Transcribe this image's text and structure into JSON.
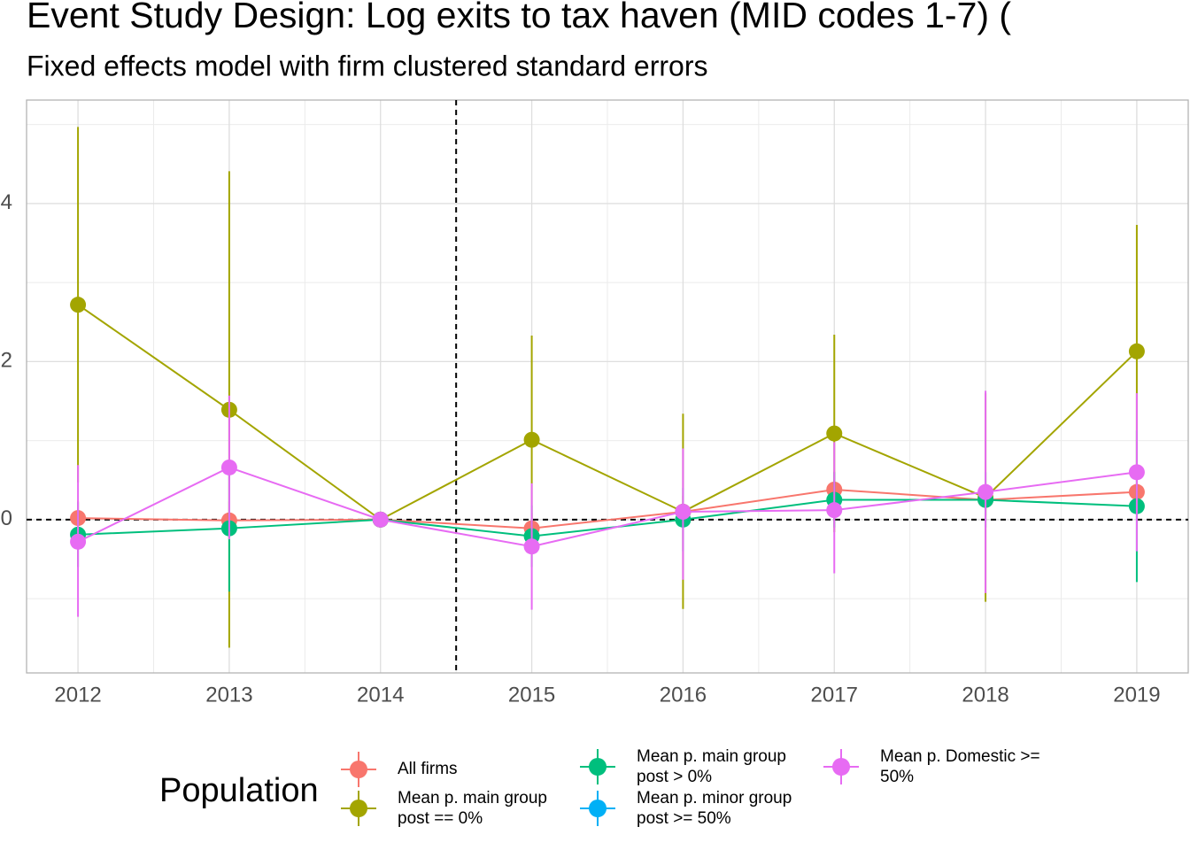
{
  "chart_data": {
    "type": "line",
    "title": "Event Study Design: Log exits to tax haven (MID codes 1-7)  (",
    "subtitle": "Fixed effects model with firm clustered standard errors",
    "x": [
      2012,
      2013,
      2014,
      2015,
      2016,
      2017,
      2018,
      2019
    ],
    "xlim": [
      2011.66,
      2019.34
    ],
    "xticks": [
      2012,
      2013,
      2014,
      2015,
      2016,
      2017,
      2018,
      2019
    ],
    "ylim": [
      -1.94,
      5.31
    ],
    "yticks": [
      0,
      2,
      4
    ],
    "grid": true,
    "vline": 2014.5,
    "hline": 0,
    "legend_title": "Population",
    "legend_position": "bottom",
    "series": [
      {
        "name": "All firms",
        "color": "#F8766D",
        "values": [
          0.02,
          -0.01,
          0,
          -0.11,
          0.1,
          0.38,
          0.25,
          0.35
        ],
        "lower": [
          -0.2,
          -0.25,
          0,
          -0.3,
          -0.1,
          0.15,
          0.05,
          0.1
        ],
        "upper": [
          0.24,
          0.23,
          0,
          0.08,
          0.3,
          0.61,
          0.45,
          0.6
        ]
      },
      {
        "name": "Mean p. main group post == 0%",
        "color": "#A3A500",
        "values": [
          2.72,
          1.39,
          0,
          1.01,
          0.1,
          1.09,
          0.28,
          2.13
        ],
        "lower": [
          0.47,
          -1.62,
          0,
          -0.31,
          -1.13,
          -0.16,
          -1.04,
          0.53
        ],
        "upper": [
          4.97,
          4.41,
          0,
          2.33,
          1.34,
          2.34,
          1.6,
          3.73
        ]
      },
      {
        "name": "Mean p. main group post > 0%",
        "color": "#00BF7D",
        "values": [
          -0.19,
          -0.11,
          0,
          -0.21,
          0,
          0.25,
          0.25,
          0.17
        ],
        "lower": [
          -0.6,
          -0.91,
          0,
          -0.6,
          -0.4,
          -0.1,
          -0.1,
          -0.79
        ],
        "upper": [
          0.22,
          0.69,
          0,
          0.18,
          0.4,
          0.6,
          0.6,
          1.13
        ]
      },
      {
        "name": "Mean p. minor group post >= 50%",
        "color": "#00B0F6",
        "values": [
          null,
          null,
          null,
          null,
          null,
          null,
          null,
          null
        ],
        "lower": [
          null,
          null,
          null,
          null,
          null,
          null,
          null,
          null
        ],
        "upper": [
          null,
          null,
          null,
          null,
          null,
          null,
          null,
          null
        ]
      },
      {
        "name": "Mean p. Domestic >= 50%",
        "color": "#E76BF3",
        "values": [
          -0.28,
          0.66,
          0,
          -0.34,
          0.1,
          0.12,
          0.35,
          0.6
        ],
        "lower": [
          -1.23,
          -0.25,
          0,
          -1.14,
          -0.76,
          -0.68,
          -0.93,
          -0.4
        ],
        "upper": [
          0.69,
          1.57,
          0,
          0.46,
          0.9,
          0.98,
          1.63,
          1.6
        ]
      }
    ]
  }
}
